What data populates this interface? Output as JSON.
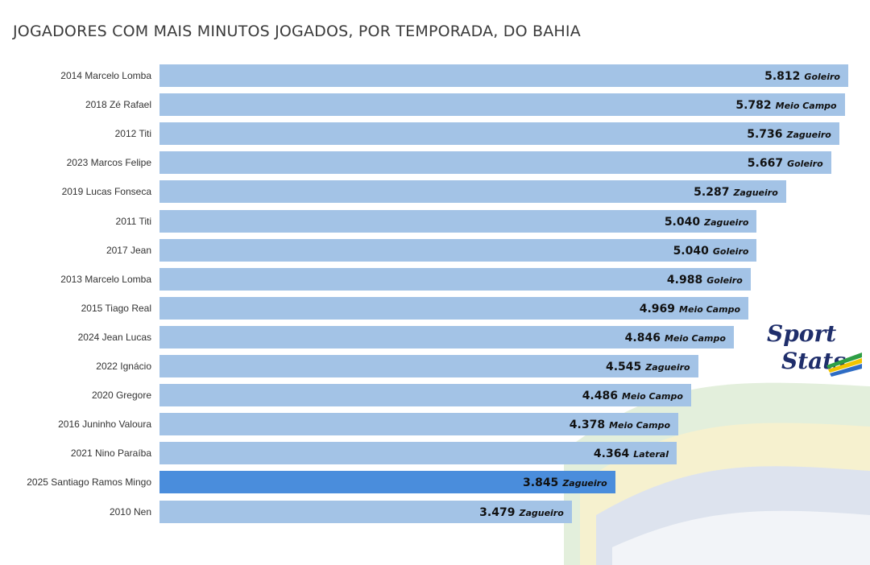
{
  "chart_data": {
    "type": "bar",
    "orientation": "horizontal",
    "title": "JOGADORES COM MAIS MINUTOS JOGADOS, POR TEMPORADA, DO BAHIA",
    "xlim": [
      0,
      5812
    ],
    "grid": false,
    "categories": [
      "2014 Marcelo Lomba",
      "2018 Zé Rafael",
      "2012 Titi",
      "2023 Marcos Felipe",
      "2019 Lucas Fonseca",
      "2011 Titi",
      "2017 Jean",
      "2013 Marcelo Lomba",
      "2015 Tiago Real",
      "2024 Jean Lucas",
      "2022 Ignácio",
      "2020 Gregore",
      "2016 Juninho Valoura",
      "2021 Nino Paraíba",
      "2025 Santiago Ramos Mingo",
      "2010 Nen"
    ],
    "values": [
      5812,
      5782,
      5736,
      5667,
      5287,
      5040,
      5040,
      4988,
      4969,
      4846,
      4545,
      4486,
      4378,
      4364,
      3845,
      3479
    ],
    "value_labels": [
      "5.812",
      "5.782",
      "5.736",
      "5.667",
      "5.287",
      "5.040",
      "5.040",
      "4.988",
      "4.969",
      "4.846",
      "4.545",
      "4.486",
      "4.378",
      "4.364",
      "3.845",
      "3.479"
    ],
    "positions": [
      "Goleiro",
      "Meio Campo",
      "Zagueiro",
      "Goleiro",
      "Zagueiro",
      "Zagueiro",
      "Goleiro",
      "Goleiro",
      "Meio Campo",
      "Meio Campo",
      "Zagueiro",
      "Meio Campo",
      "Meio Campo",
      "Lateral",
      "Zagueiro",
      "Zagueiro"
    ],
    "highlight_index": 14,
    "colors": {
      "bar": "#a3c3e6",
      "highlight": "#4a8ddc"
    }
  },
  "logo": {
    "line1": "Sport",
    "line2": "Stats"
  }
}
